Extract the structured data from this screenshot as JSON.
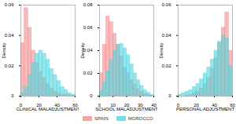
{
  "chart_data": [
    {
      "type": "histogram",
      "x_label": "CLINICAL MALADJUSTMENT",
      "y_label": "Density",
      "bins": [
        0,
        4,
        8,
        12,
        16,
        20,
        24,
        28,
        32,
        36,
        40,
        44,
        48,
        52,
        56,
        60
      ],
      "series": [
        {
          "name": "SPAIN",
          "color": "#f28b8b",
          "values": [
            0.035,
            0.058,
            0.045,
            0.03,
            0.022,
            0.016,
            0.012,
            0.008,
            0.005,
            0.003,
            0.002,
            0.001,
            0.001,
            0.0005,
            0.0003
          ]
        },
        {
          "name": "MOROCCO",
          "color": "#4fd6e0",
          "values": [
            0.002,
            0.006,
            0.014,
            0.022,
            0.028,
            0.03,
            0.028,
            0.024,
            0.018,
            0.014,
            0.01,
            0.006,
            0.004,
            0.002,
            0.001
          ]
        }
      ],
      "xlim": [
        0,
        60
      ],
      "xticks": [
        0,
        20,
        40,
        60
      ],
      "ylim": [
        0,
        0.06
      ],
      "yticks": [
        0,
        0.02,
        0.04,
        0.06
      ],
      "legend": "bottom"
    },
    {
      "type": "histogram",
      "x_label": "SCHOOL MALADJUSTMENT",
      "y_label": "Density",
      "bins": [
        0,
        2.5,
        5,
        7.5,
        10,
        12.5,
        15,
        17.5,
        20,
        22.5,
        25,
        27.5,
        30,
        32.5,
        35,
        37.5,
        40
      ],
      "series": [
        {
          "name": "SPAIN",
          "color": "#f28b8b",
          "values": [
            0.02,
            0.045,
            0.07,
            0.065,
            0.055,
            0.045,
            0.035,
            0.025,
            0.02,
            0.014,
            0.01,
            0.006,
            0.004,
            0.002,
            0.001,
            0.0005
          ]
        },
        {
          "name": "MOROCCO",
          "color": "#4fd6e0",
          "values": [
            0.005,
            0.012,
            0.022,
            0.032,
            0.04,
            0.045,
            0.046,
            0.042,
            0.036,
            0.028,
            0.02,
            0.014,
            0.009,
            0.005,
            0.003,
            0.001
          ]
        }
      ],
      "xlim": [
        0,
        40
      ],
      "xticks": [
        0,
        10,
        20,
        30,
        40
      ],
      "ylim": [
        0,
        0.08
      ],
      "yticks": [
        0,
        0.02,
        0.04,
        0.06,
        0.08
      ],
      "legend": "bottom"
    },
    {
      "type": "histogram",
      "x_label": "PERSONAL ADJUSTMENT",
      "y_label": "Density",
      "bins": [
        0,
        4,
        8,
        12,
        16,
        20,
        24,
        28,
        32,
        36,
        40,
        44,
        48,
        52,
        56,
        60
      ],
      "series": [
        {
          "name": "SPAIN",
          "color": "#f28b8b",
          "values": [
            0,
            0,
            0.0005,
            0.001,
            0.002,
            0.003,
            0.005,
            0.008,
            0.012,
            0.018,
            0.025,
            0.035,
            0.045,
            0.055,
            0.03
          ]
        },
        {
          "name": "MOROCCO",
          "color": "#4fd6e0",
          "values": [
            0.001,
            0.002,
            0.003,
            0.004,
            0.006,
            0.008,
            0.011,
            0.015,
            0.019,
            0.024,
            0.03,
            0.036,
            0.04,
            0.038,
            0.02
          ]
        }
      ],
      "xlim": [
        0,
        60
      ],
      "xticks": [
        0,
        20,
        40,
        60
      ],
      "ylim": [
        0,
        0.06
      ],
      "yticks": [
        0,
        0.02,
        0.04,
        0.06
      ],
      "legend": "bottom"
    }
  ]
}
